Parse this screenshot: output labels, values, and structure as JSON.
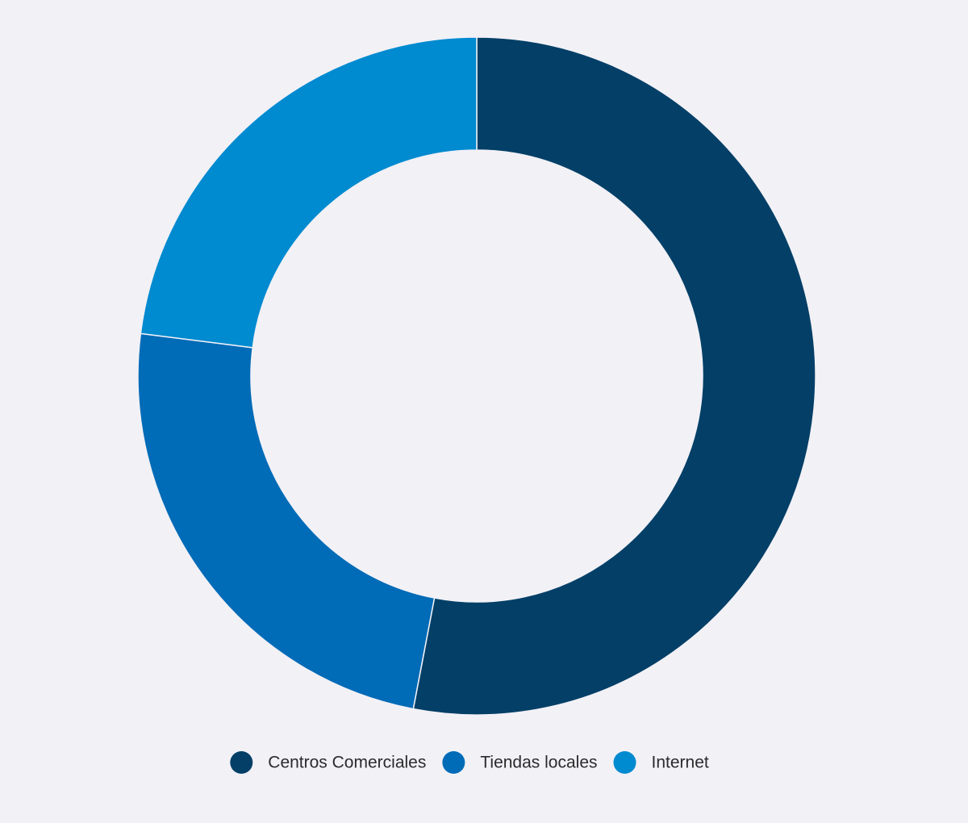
{
  "chart_data": {
    "type": "donut",
    "categories": [
      "Centros Comerciales",
      "Tiendas locales",
      "Internet"
    ],
    "values": [
      53,
      24,
      23
    ],
    "colors": [
      "#033f67",
      "#006bb7",
      "#008ad0"
    ],
    "legend": "bottom"
  }
}
